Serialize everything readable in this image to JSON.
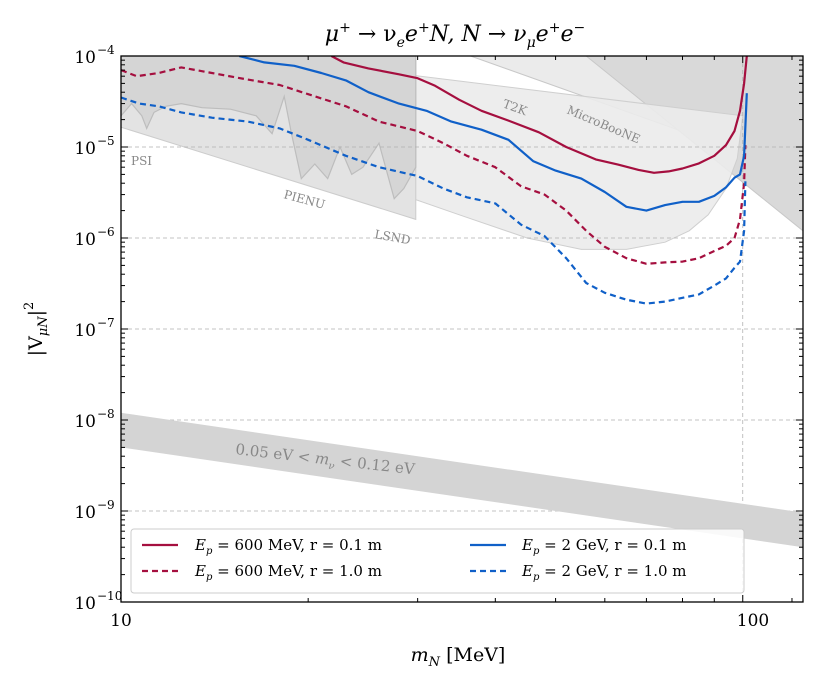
{
  "chart_data": {
    "type": "line",
    "title": "μ⁺ → νₑe⁺N, N → ν_μe⁺e⁻",
    "title_parts": {
      "mu": "μ",
      "sup_plus": "+",
      "arrow1": " → ν",
      "sub_e": "e",
      "e": "e",
      "sup_plus2": "+",
      "n_arrow": "N, N → ν",
      "sub_mu": "μ",
      "e2": "e",
      "sup_plus3": "+",
      "e3": "e",
      "sup_minus": "−"
    },
    "xlabel": "m_N [MeV]",
    "xlabel_parts": {
      "m": "m",
      "sub": "N",
      "unit": " [MeV]"
    },
    "ylabel": "|V_μN|²",
    "ylabel_parts": {
      "bar_open": "|V",
      "sub": "μN",
      "bar_close": "|",
      "sup": "2"
    },
    "xscale": "log",
    "yscale": "log",
    "xlim": [
      10,
      125
    ],
    "ylim": [
      1e-10,
      0.0001
    ],
    "x_ticks": [
      {
        "value": 10,
        "label": "10"
      },
      {
        "value": 100,
        "label": "100"
      }
    ],
    "y_ticks": [
      {
        "value": 1e-10,
        "base": "10",
        "exp": "−10"
      },
      {
        "value": 1e-09,
        "base": "10",
        "exp": "−9"
      },
      {
        "value": 1e-08,
        "base": "10",
        "exp": "−8"
      },
      {
        "value": 1e-07,
        "base": "10",
        "exp": "−7"
      },
      {
        "value": 1e-06,
        "base": "10",
        "exp": "−6"
      },
      {
        "value": 1e-05,
        "base": "10",
        "exp": "−5"
      },
      {
        "value": 0.0001,
        "base": "10",
        "exp": "−4"
      }
    ],
    "grid": true,
    "legend_position": "lower-left",
    "colors": {
      "crimson": "#a50f3f",
      "blue": "#1060c8",
      "band": "#d4d4d4",
      "region_light": "#ebebeb",
      "region_dark": "#d9d9d9",
      "region_label": "#888888"
    },
    "series": [
      {
        "name": "E_p = 600 MeV, r = 0.1 m",
        "label_parts": {
          "e": "E",
          "sub": "p",
          "rest": " = 600 MeV, r = 0.1 m"
        },
        "color": "#a50f3f",
        "dash": "solid",
        "x": [
          21.8,
          22.8,
          25,
          28,
          30,
          32,
          35,
          38,
          42,
          47,
          52,
          58,
          63,
          68,
          72,
          76,
          80,
          85,
          90,
          94,
          97,
          99,
          100.5,
          101.5
        ],
        "y": [
          0.0001,
          8.5e-05,
          7.3e-05,
          6.3e-05,
          5.7e-05,
          4.7e-05,
          3.3e-05,
          2.5e-05,
          1.95e-05,
          1.45e-05,
          1e-05,
          7.3e-06,
          6.4e-06,
          5.6e-06,
          5.2e-06,
          5.4e-06,
          5.8e-06,
          6.6e-06,
          8e-06,
          1.05e-05,
          1.5e-05,
          2.5e-05,
          5e-05,
          0.0001
        ]
      },
      {
        "name": "E_p = 600 MeV, r = 1.0 m",
        "label_parts": {
          "e": "E",
          "sub": "p",
          "rest": " = 600 MeV, r = 1.0 m"
        },
        "color": "#a50f3f",
        "dash": "dashed",
        "x": [
          10,
          10.6,
          11.5,
          12.5,
          14,
          16,
          18,
          20,
          23,
          26,
          30,
          33,
          36,
          40,
          44,
          48,
          52,
          56,
          60,
          65,
          70,
          75,
          80,
          85,
          90,
          94,
          97,
          99,
          100.5,
          101
        ],
        "y": [
          7e-05,
          6e-05,
          6.5e-05,
          7.5e-05,
          6.5e-05,
          5.5e-05,
          4.8e-05,
          3.8e-05,
          2.8e-05,
          1.9e-05,
          1.5e-05,
          1.1e-05,
          8e-06,
          6e-06,
          3.7e-06,
          3e-06,
          2e-06,
          1.2e-06,
          8e-07,
          6e-07,
          5.2e-07,
          5.4e-07,
          5.5e-07,
          6e-07,
          7.2e-07,
          8.2e-07,
          1e-06,
          1.6e-06,
          4e-06,
          1.05e-05
        ]
      },
      {
        "name": "E_p = 2 GeV, r = 0.1 m",
        "label_parts": {
          "e": "E",
          "sub": "p",
          "rest": " = 2 GeV, r = 0.1 m"
        },
        "color": "#1060c8",
        "dash": "solid",
        "x": [
          15.5,
          17,
          19,
          21,
          23,
          25,
          28,
          31,
          34,
          38,
          42,
          46,
          50,
          55,
          60,
          65,
          70,
          75,
          80,
          85,
          90,
          94,
          97,
          99,
          100.5,
          101.5
        ],
        "y": [
          0.0001,
          8.5e-05,
          7.8e-05,
          6.5e-05,
          5.4e-05,
          4e-05,
          3e-05,
          2.5e-05,
          1.9e-05,
          1.55e-05,
          1.2e-05,
          7e-06,
          5.5e-06,
          4.5e-06,
          3.2e-06,
          2.2e-06,
          2e-06,
          2.3e-06,
          2.5e-06,
          2.5e-06,
          2.9e-06,
          3.6e-06,
          4.6e-06,
          5e-06,
          8e-06,
          3.9e-05
        ]
      },
      {
        "name": "E_p = 2 GeV, r = 1.0 m",
        "label_parts": {
          "e": "E",
          "sub": "p",
          "rest": " = 2 GeV, r = 1.0 m"
        },
        "color": "#1060c8",
        "dash": "dashed",
        "x": [
          10,
          10.7,
          11.5,
          12.5,
          14,
          16,
          18,
          20,
          23,
          26,
          30,
          33,
          36,
          40,
          44,
          48,
          52,
          56,
          60,
          65,
          70,
          75,
          80,
          85,
          90,
          94,
          97,
          99,
          100.5,
          101
        ],
        "y": [
          3.5e-05,
          3e-05,
          2.8e-05,
          2.4e-05,
          2.1e-05,
          1.9e-05,
          1.6e-05,
          1.2e-05,
          8e-06,
          6e-06,
          4.8e-06,
          3.5e-06,
          2.8e-06,
          2.4e-06,
          1.4e-06,
          1.05e-06,
          6e-07,
          3.2e-07,
          2.5e-07,
          2.1e-07,
          1.9e-07,
          2e-07,
          2.2e-07,
          2.4e-07,
          3e-07,
          3.6e-07,
          4.7e-07,
          5.5e-07,
          1.2e-06,
          4.2e-06
        ]
      }
    ],
    "regions": [
      {
        "name": "PSI",
        "label": "PSI",
        "upper_x": [
          10,
          10.4,
          10.8,
          11.0,
          11.3,
          11.8,
          12.5,
          13.5,
          15,
          16.5,
          17.5,
          18.3,
          18.8,
          19.5,
          20.5,
          21.5,
          22.5,
          23.5,
          24.5,
          26,
          27.5,
          28.5,
          29.8
        ],
        "upper_y": [
          2.2e-05,
          3e-05,
          2.2e-05,
          1.6e-05,
          2.4e-05,
          2.8e-05,
          3e-05,
          2.7e-05,
          2.6e-05,
          2.2e-05,
          1.4e-05,
          3.6e-05,
          1.4e-05,
          4.5e-06,
          6.5e-06,
          4.5e-06,
          1e-05,
          5e-06,
          6e-06,
          1.1e-05,
          2.7e-06,
          3.5e-06,
          6e-06
        ]
      },
      {
        "name": "PIENU",
        "label": "PIENU",
        "lower_x": [
          10,
          29.8
        ],
        "lower_y": [
          1.65e-05,
          1.6e-06
        ]
      },
      {
        "name": "LSND",
        "label": "LSND",
        "upper_x": [
          16.5,
          100
        ],
        "upper_y": [
          0.0001,
          2.2e-05
        ],
        "lower_x": [
          16.5,
          25,
          35,
          45,
          55,
          65,
          75,
          82,
          88,
          94,
          98,
          100
        ],
        "lower_y": [
          0.0001,
          4e-06,
          1.8e-06,
          1e-06,
          7.5e-07,
          7.5e-07,
          9e-07,
          1.2e-06,
          1.8e-06,
          3.5e-06,
          7.5e-06,
          2.2e-05
        ]
      },
      {
        "name": "T2K",
        "label": "T2K",
        "upper_x": [
          36.5,
          125
        ],
        "upper_y": [
          0.0001,
          5e-06
        ]
      },
      {
        "name": "MicroBooNE",
        "label": "MicroBooNE",
        "upper_x": [
          56,
          125
        ],
        "upper_y": [
          0.0001,
          1.2e-06
        ]
      }
    ],
    "band": {
      "label": "0.05 eV < m_ν < 0.12 eV",
      "label_parts": {
        "pre": "0.05 eV < ",
        "m": "m",
        "sub": "ν",
        "post": " < 0.12 eV"
      },
      "upper": {
        "x": [
          10,
          125
        ],
        "y": [
          1.2e-08,
          9.6e-10
        ]
      },
      "lower": {
        "x": [
          10,
          125
        ],
        "y": [
          5e-09,
          4e-10
        ]
      }
    }
  }
}
